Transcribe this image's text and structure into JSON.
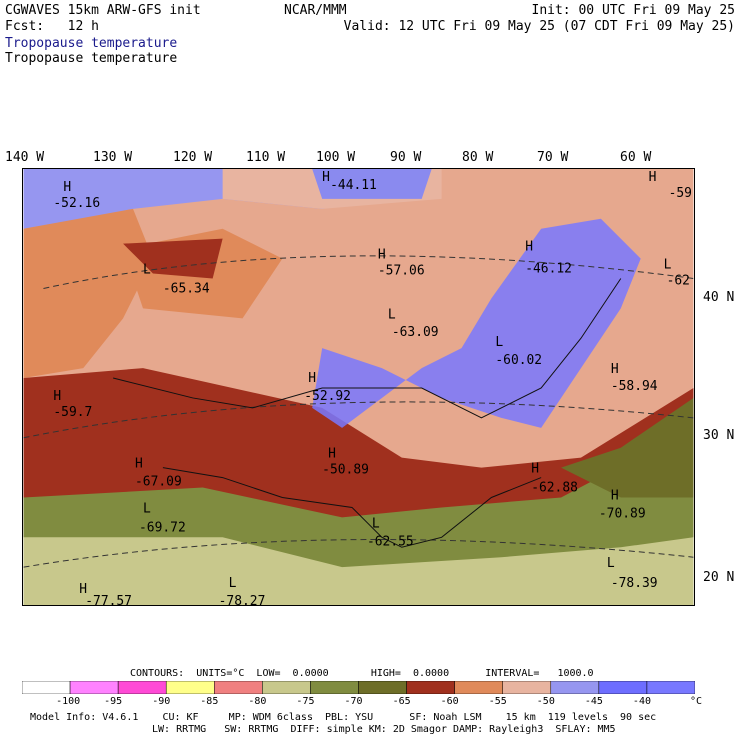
{
  "header": {
    "title": "CGWAVES 15km ARW-GFS init",
    "organization": "NCAR/MMM",
    "init": "Init: 00 UTC Fri 09 May 25",
    "fcst": "Fcst:   12 h",
    "valid": "Valid: 12 UTC Fri 09 May 25 (07 CDT Fri 09 May 25)",
    "field_line1": "Tropopause temperature",
    "field_line2": "Tropopause temperature"
  },
  "longitudes": [
    "140 W",
    "130 W",
    "120 W",
    "110 W",
    "100 W",
    "90 W",
    "80 W",
    "70 W",
    "60 W"
  ],
  "latitudes": [
    "40 N",
    "30 N",
    "20 N"
  ],
  "map_labels": [
    {
      "type": "H",
      "value": "-52.16"
    },
    {
      "type": "L",
      "value": "-65.34"
    },
    {
      "type": "H",
      "value": "-59.7"
    },
    {
      "type": "H",
      "value": "-44.11"
    },
    {
      "type": "H",
      "value": "-57.06"
    },
    {
      "type": "L",
      "value": "-63.09"
    },
    {
      "type": "H",
      "value": "-52.92"
    },
    {
      "type": "H",
      "value": "-50.89"
    },
    {
      "type": "H",
      "value": "-67.09"
    },
    {
      "type": "L",
      "value": "-69.72"
    },
    {
      "type": "L",
      "value": "-62.55"
    },
    {
      "type": "H",
      "value": "-46.12"
    },
    {
      "type": "L",
      "value": "-60.02"
    },
    {
      "type": "H",
      "value": "-58.94"
    },
    {
      "type": "H",
      "value": "-62.88"
    },
    {
      "type": "H",
      "value": "-70.89"
    },
    {
      "type": "L",
      "value": "-78.39"
    },
    {
      "type": "L",
      "value": "-78.27"
    },
    {
      "type": "H",
      "value": "-77.57"
    },
    {
      "type": "L",
      "value": "-62"
    },
    {
      "type": "H",
      "value": "-59"
    }
  ],
  "colorbar": {
    "unit": "°C",
    "labels": [
      "-100",
      "-95",
      "-90",
      "-85",
      "-80",
      "-75",
      "-70",
      "-65",
      "-60",
      "-55",
      "-50",
      "-45",
      "-40"
    ],
    "colors": [
      "#ffffff",
      "#ff82ff",
      "#ff4ad6",
      "#ffff8a",
      "#f08080",
      "#c8c88c",
      "#808c40",
      "#6e6e28",
      "#a0301e",
      "#e08a5a",
      "#e8b4a0",
      "#9696f0",
      "#6e6eff",
      "#7878ff"
    ]
  },
  "contours": "CONTOURS:  UNITS=°C  LOW=  0.0000       HIGH=  0.0000      INTERVAL=   1000.0",
  "model_info": {
    "line1": "Model Info: V4.6.1    CU: KF     MP: WDM 6class  PBL: YSU      SF: Noah LSM    15 km  119 levels  90 sec",
    "line2": "LW: RRTMG   SW: RRTMG  DIFF: simple KM: 2D Smagor DAMP: Rayleigh3  SFLAY: MM5"
  }
}
